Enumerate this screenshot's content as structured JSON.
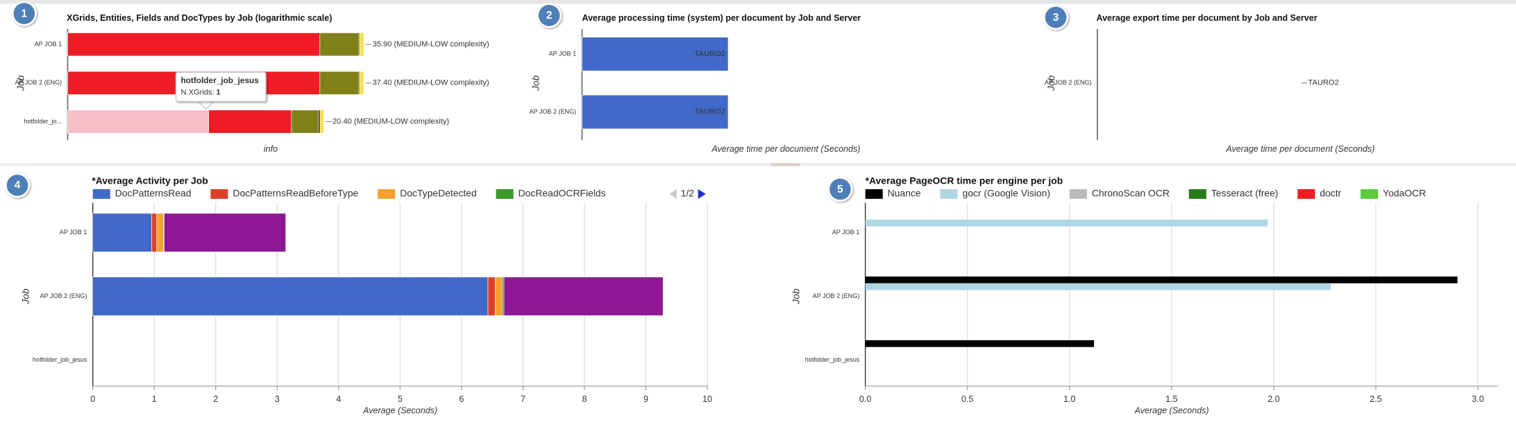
{
  "chart_data": [
    {
      "type": "bar",
      "orientation": "horizontal",
      "stacked": true,
      "xscale": "log",
      "title": "XGrids, Entities, Fields and DocTypes by Job (logarithmic scale)",
      "panel_number": 1,
      "ylabel": "Job",
      "xlabel": "info",
      "categories": [
        "AP JOB 1",
        "AP JOB 2 (ENG)",
        "hotfolder_jo..."
      ],
      "value_labels": [
        "35.90 (MEDIUM-LOW complexity)",
        "37.40 (MEDIUM-LOW complexity)",
        "20.40 (MEDIUM-LOW complexity)"
      ],
      "series": [
        {
          "color": "#f7bfca",
          "values": [
            null,
            null,
            1
          ]
        },
        {
          "color": "#ee1c25",
          "values": [
            7.2,
            7.2,
            3.4
          ]
        },
        {
          "color": "#808019",
          "values": [
            6.9,
            6.9,
            2.6
          ]
        },
        {
          "color": "#111111",
          "values": [
            0.2,
            0.2,
            0.2
          ]
        },
        {
          "color": "#f5e04a",
          "values": [
            1.0,
            1.0,
            0.5
          ]
        }
      ],
      "xlim": [
        0.1,
        100
      ],
      "tooltip": {
        "title": "hotfolder_job_jesus",
        "label": "N.XGrids:",
        "value": 1
      }
    },
    {
      "type": "bar",
      "orientation": "horizontal",
      "stacked": true,
      "title": "Average processing time (system) per document by Job and Server",
      "panel_number": 2,
      "ylabel": "Job",
      "xlabel": "Average time per document (Seconds)",
      "categories": [
        "AP JOB 1",
        "AP JOB 2 (ENG)"
      ],
      "series": [
        {
          "color": "#4169c9",
          "values": [
            0.33,
            0.33
          ],
          "value_labels": [
            "TAURO2",
            "TAURO2"
          ]
        }
      ],
      "xlim": [
        0,
        1
      ]
    },
    {
      "type": "bar",
      "orientation": "horizontal",
      "stacked": true,
      "title": "Average export time per document by Job and Server",
      "panel_number": 3,
      "ylabel": "Job",
      "xlabel": "Average time per document (Seconds)",
      "categories": [
        "AP JOB 2 (ENG)"
      ],
      "series": [
        {
          "color": "#4169c9",
          "values": [
            0
          ],
          "value_labels": [
            "TAURO2"
          ]
        }
      ],
      "xlim": [
        -1,
        1
      ]
    },
    {
      "type": "bar",
      "orientation": "horizontal",
      "stacked": true,
      "title": "*Average Activity per Job",
      "panel_number": 4,
      "ylabel": "Job",
      "xlabel": "Average (Seconds)",
      "legend_page": "1/2",
      "categories": [
        "AP JOB 1",
        "AP JOB 2 (ENG)",
        "hotfolder_job_jesus"
      ],
      "series": [
        {
          "name": "DocPatternsRead",
          "color": "#4169c9",
          "values": [
            0.96,
            6.43,
            null
          ]
        },
        {
          "name": "DocPatternsReadBeforeType",
          "color": "#d9402a",
          "values": [
            0.08,
            0.12,
            null
          ]
        },
        {
          "name": "DocTypeDetected",
          "color": "#f7a12f",
          "values": [
            0.11,
            0.11,
            null
          ]
        },
        {
          "name": "DocReadOCRFields",
          "color": "#3a9a2a",
          "values": [
            0.01,
            0.03,
            null
          ]
        },
        {
          "color": "#8e1893",
          "values": [
            1.98,
            2.59,
            null
          ]
        }
      ],
      "xlim": [
        0,
        10
      ],
      "xticks": [
        0,
        1,
        2,
        3,
        4,
        5,
        6,
        7,
        8,
        9,
        10
      ],
      "grid": true
    },
    {
      "type": "bar",
      "orientation": "horizontal",
      "stacked": false,
      "title": "*Average PageOCR time per engine per job",
      "panel_number": 5,
      "ylabel": "Job",
      "xlabel": "Average (Seconds)",
      "categories": [
        "AP JOB 1",
        "AP JOB 2 (ENG)",
        "hotfolder_job_jesus"
      ],
      "series": [
        {
          "name": "Nuance",
          "color": "#000000",
          "values": [
            null,
            2.9,
            1.12
          ]
        },
        {
          "name": "gocr (Google Vision)",
          "color": "#aed6e3",
          "values": [
            1.97,
            2.28,
            null
          ]
        },
        {
          "name": "ChronoScan OCR",
          "color": "#bbbbbb",
          "values": [
            null,
            null,
            null
          ]
        },
        {
          "name": "Tesseract (free)",
          "color": "#2a7a1a",
          "values": [
            null,
            null,
            null
          ]
        },
        {
          "name": "doctr",
          "color": "#ee1c25",
          "values": [
            null,
            null,
            null
          ]
        },
        {
          "name": "YodaOCR",
          "color": "#5ecb3d",
          "values": [
            null,
            null,
            null
          ]
        }
      ],
      "xlim": [
        0,
        3.1
      ],
      "xticks": [
        {
          "value": 0,
          "label": "0.0"
        },
        {
          "value": 0.5,
          "label": "0.5"
        },
        {
          "value": 1,
          "label": "1.0"
        },
        {
          "value": 1.5,
          "label": "1.5"
        },
        {
          "value": 2,
          "label": "2.0"
        },
        {
          "value": 2.5,
          "label": "2.5"
        },
        {
          "value": 3,
          "label": "3.0"
        }
      ],
      "grid": true
    }
  ]
}
